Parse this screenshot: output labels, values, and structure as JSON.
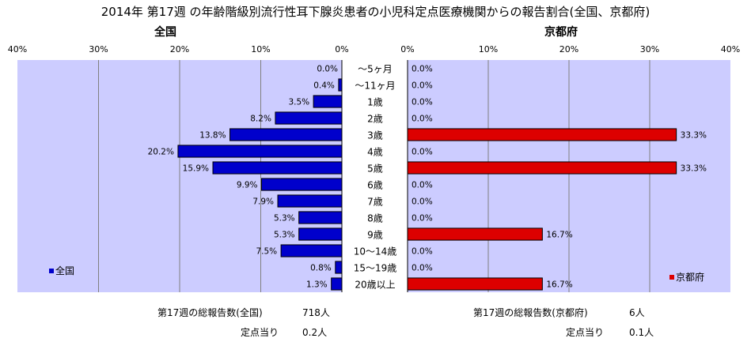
{
  "title": "2014年 第17週 の年齢階級別流行性耳下腺炎患者の小児科定点医療機関からの報告割合(全国、京都府)",
  "colors": {
    "national": "#0000CC",
    "kyoto": "#DD0000",
    "plot_bg": "#CCCCFF",
    "grid": "#808080"
  },
  "chart_data": [
    {
      "type": "bar",
      "orientation": "horizontal",
      "direction": "right-to-left",
      "title": "全国",
      "categories": [
        "〜5ヶ月",
        "〜11ヶ月",
        "1歳",
        "2歳",
        "3歳",
        "4歳",
        "5歳",
        "6歳",
        "7歳",
        "8歳",
        "9歳",
        "10〜14歳",
        "15〜19歳",
        "20歳以上"
      ],
      "series": [
        {
          "name": "全国",
          "values": [
            0.0,
            0.4,
            3.5,
            8.2,
            13.8,
            20.2,
            15.9,
            9.9,
            7.9,
            5.3,
            5.3,
            7.5,
            0.8,
            1.3
          ]
        }
      ],
      "xlim": [
        0,
        40
      ],
      "ticks": [
        "40%",
        "30%",
        "20%",
        "10%",
        "0%"
      ],
      "grid": true,
      "legend": "bottom-left"
    },
    {
      "type": "bar",
      "orientation": "horizontal",
      "direction": "left-to-right",
      "title": "京都府",
      "categories": [
        "〜5ヶ月",
        "〜11ヶ月",
        "1歳",
        "2歳",
        "3歳",
        "4歳",
        "5歳",
        "6歳",
        "7歳",
        "8歳",
        "9歳",
        "10〜14歳",
        "15〜19歳",
        "20歳以上"
      ],
      "series": [
        {
          "name": "京都府",
          "values": [
            0.0,
            0.0,
            0.0,
            0.0,
            33.3,
            0.0,
            33.3,
            0.0,
            0.0,
            0.0,
            16.7,
            0.0,
            0.0,
            16.7
          ]
        }
      ],
      "xlim": [
        0,
        40
      ],
      "ticks": [
        "0%",
        "10%",
        "20%",
        "30%",
        "40%"
      ],
      "grid": true,
      "legend": "bottom-right"
    }
  ],
  "summary": {
    "national_total_label": "第17週の総報告数(全国)",
    "national_total_value": "718人",
    "national_per_label": "定点当り",
    "national_per_value": "0.2人",
    "kyoto_total_label": "第17週の総報告数(京都府)",
    "kyoto_total_value": "6人",
    "kyoto_per_label": "定点当り",
    "kyoto_per_value": "0.1人"
  }
}
